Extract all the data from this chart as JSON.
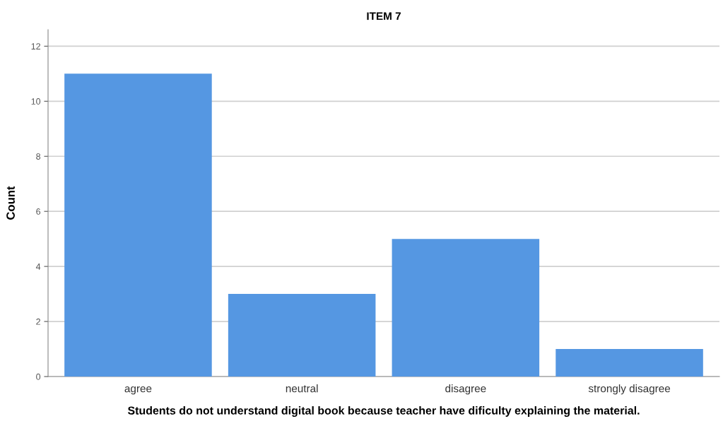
{
  "chart_data": {
    "type": "bar",
    "title": "ITEM 7",
    "xlabel": "Students do not understand digital book because teacher have dificulty explaining the material.",
    "ylabel": "Count",
    "categories": [
      "agree",
      "neutral",
      "disagree",
      "strongly disagree"
    ],
    "values": [
      11,
      3,
      5,
      1
    ],
    "color": "#5597e2",
    "ylim": [
      0,
      12.6
    ],
    "yticks": [
      0,
      2,
      4,
      6,
      8,
      10,
      12
    ],
    "grid": "y"
  }
}
